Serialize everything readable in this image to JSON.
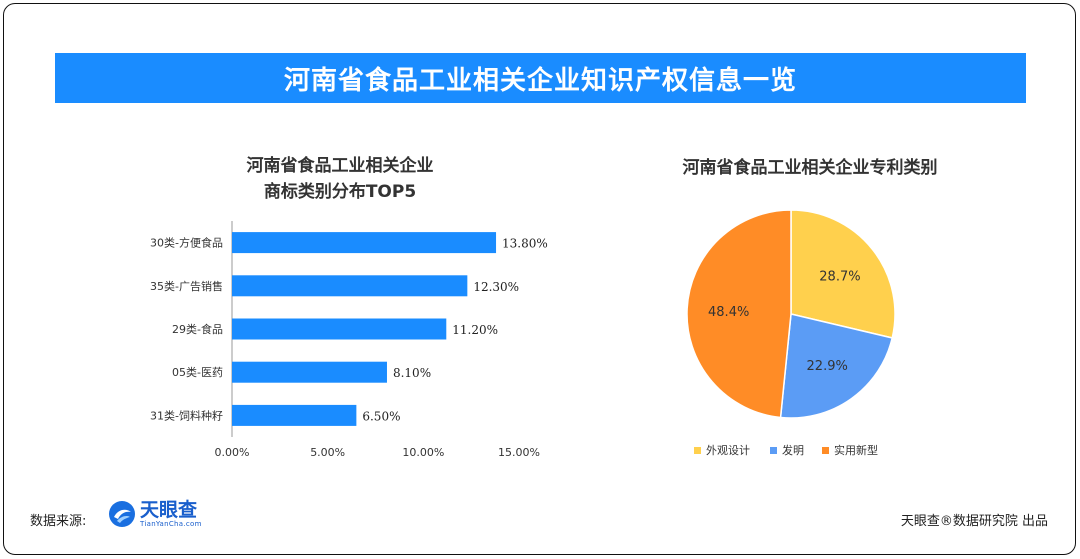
{
  "banner": {
    "title": "河南省食品工业相关企业知识产权信息一览"
  },
  "bar_chart": {
    "title_line1": "河南省食品工业相关企业",
    "title_line2": "商标类别分布TOP5"
  },
  "pie_chart": {
    "title": "河南省食品工业相关企业专利类别"
  },
  "chart_data": [
    {
      "type": "bar",
      "orientation": "horizontal",
      "title": "河南省食品工业相关企业商标类别分布TOP5",
      "categories": [
        "30类-方便食品",
        "35类-广告销售",
        "29类-食品",
        "05类-医药",
        "31类-饲料种籽"
      ],
      "values": [
        13.8,
        12.3,
        11.2,
        8.1,
        6.5
      ],
      "value_labels": [
        "13.80%",
        "12.30%",
        "11.20%",
        "8.10%",
        "6.50%"
      ],
      "xlim": [
        0,
        15
      ],
      "xticks": [
        "0.00%",
        "5.00%",
        "10.00%",
        "15.00%"
      ],
      "color": "#1a8cff",
      "grid": false
    },
    {
      "type": "pie",
      "title": "河南省食品工业相关企业专利类别",
      "categories": [
        "外观设计",
        "发明",
        "实用新型"
      ],
      "values": [
        28.7,
        22.9,
        48.4
      ],
      "value_labels": [
        "28.7%",
        "22.9%",
        "48.4%"
      ],
      "colors": [
        "#ffd04d",
        "#5b9cf5",
        "#ff8c26"
      ],
      "legend_position": "bottom"
    }
  ],
  "footer": {
    "source_label": "数据来源:",
    "logo_main": "天眼查",
    "logo_sub": "TianYanCha.com",
    "credit": "天眼查®数据研究院 出品"
  }
}
